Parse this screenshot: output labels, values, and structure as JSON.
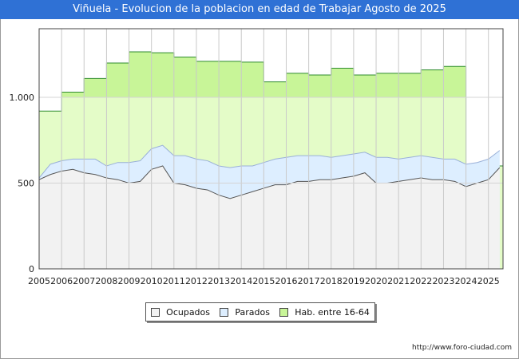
{
  "chart_data": {
    "type": "area",
    "title": "Viñuela - Evolucion de la poblacion en edad de Trabajar Agosto de 2025",
    "xlabel": "",
    "ylabel": "",
    "ylim": [
      0,
      1400
    ],
    "yticks": [
      0,
      500,
      1000
    ],
    "ytick_labels": [
      "0",
      "500",
      "1.000"
    ],
    "xtick_labels": [
      "2005",
      "2006",
      "2007",
      "2008",
      "2009",
      "2010",
      "2011",
      "2012",
      "2013",
      "2014",
      "2015",
      "2016",
      "2017",
      "2018",
      "2019",
      "2020",
      "2021",
      "2022",
      "2023",
      "2024",
      "2025"
    ],
    "grid": true,
    "legend_position": "bottom",
    "colors": {
      "ocupados_fill": "#f2f2f2",
      "ocupados_line": "#555555",
      "parados_fill": "#ddeeff",
      "parados_line": "#9ab0d8",
      "hab_fill": "#e4fcc8",
      "hab_fill_strong": "#c8f598",
      "hab_line": "#2e8b2e"
    },
    "series": [
      {
        "name": "Hab. entre 16-64",
        "step": true,
        "x": [
          2005,
          2006,
          2007,
          2008,
          2009,
          2010,
          2011,
          2012,
          2013,
          2014,
          2015,
          2016,
          2017,
          2018,
          2019,
          2020,
          2021,
          2022,
          2023,
          2024
        ],
        "values": [
          920,
          1030,
          1110,
          1200,
          1265,
          1260,
          1235,
          1210,
          1210,
          1205,
          1090,
          1140,
          1130,
          1170,
          1130,
          1140,
          1140,
          1160,
          1180,
          600
        ]
      },
      {
        "name": "Parados",
        "x": [
          2005,
          2005.5,
          2006,
          2006.5,
          2007,
          2007.5,
          2008,
          2008.5,
          2009,
          2009.5,
          2010,
          2010.5,
          2011,
          2011.5,
          2012,
          2012.5,
          2013,
          2013.5,
          2014,
          2014.5,
          2015,
          2015.5,
          2016,
          2016.5,
          2017,
          2017.5,
          2018,
          2018.5,
          2019,
          2019.5,
          2020,
          2020.5,
          2021,
          2021.5,
          2022,
          2022.5,
          2023,
          2023.5,
          2024,
          2024.5,
          2025,
          2025.5
        ],
        "values": [
          530,
          610,
          630,
          640,
          640,
          640,
          600,
          620,
          620,
          630,
          700,
          720,
          660,
          660,
          640,
          630,
          600,
          590,
          600,
          600,
          620,
          640,
          650,
          660,
          660,
          660,
          650,
          660,
          670,
          680,
          650,
          650,
          640,
          650,
          660,
          650,
          640,
          640,
          610,
          620,
          640,
          690
        ]
      },
      {
        "name": "Ocupados",
        "x": [
          2005,
          2005.5,
          2006,
          2006.5,
          2007,
          2007.5,
          2008,
          2008.5,
          2009,
          2009.5,
          2010,
          2010.5,
          2011,
          2011.5,
          2012,
          2012.5,
          2013,
          2013.5,
          2014,
          2014.5,
          2015,
          2015.5,
          2016,
          2016.5,
          2017,
          2017.5,
          2018,
          2018.5,
          2019,
          2019.5,
          2020,
          2020.5,
          2021,
          2021.5,
          2022,
          2022.5,
          2023,
          2023.5,
          2024,
          2024.5,
          2025,
          2025.5
        ],
        "values": [
          520,
          550,
          570,
          580,
          560,
          550,
          530,
          520,
          500,
          510,
          580,
          600,
          500,
          490,
          470,
          460,
          430,
          410,
          430,
          450,
          470,
          490,
          490,
          510,
          510,
          520,
          520,
          530,
          540,
          560,
          500,
          500,
          510,
          520,
          530,
          520,
          520,
          510,
          480,
          500,
          520,
          590
        ]
      }
    ]
  },
  "legend": {
    "ocupados": "Ocupados",
    "parados": "Parados",
    "hab": "Hab. entre 16-64"
  },
  "source": "http://www.foro-ciudad.com"
}
